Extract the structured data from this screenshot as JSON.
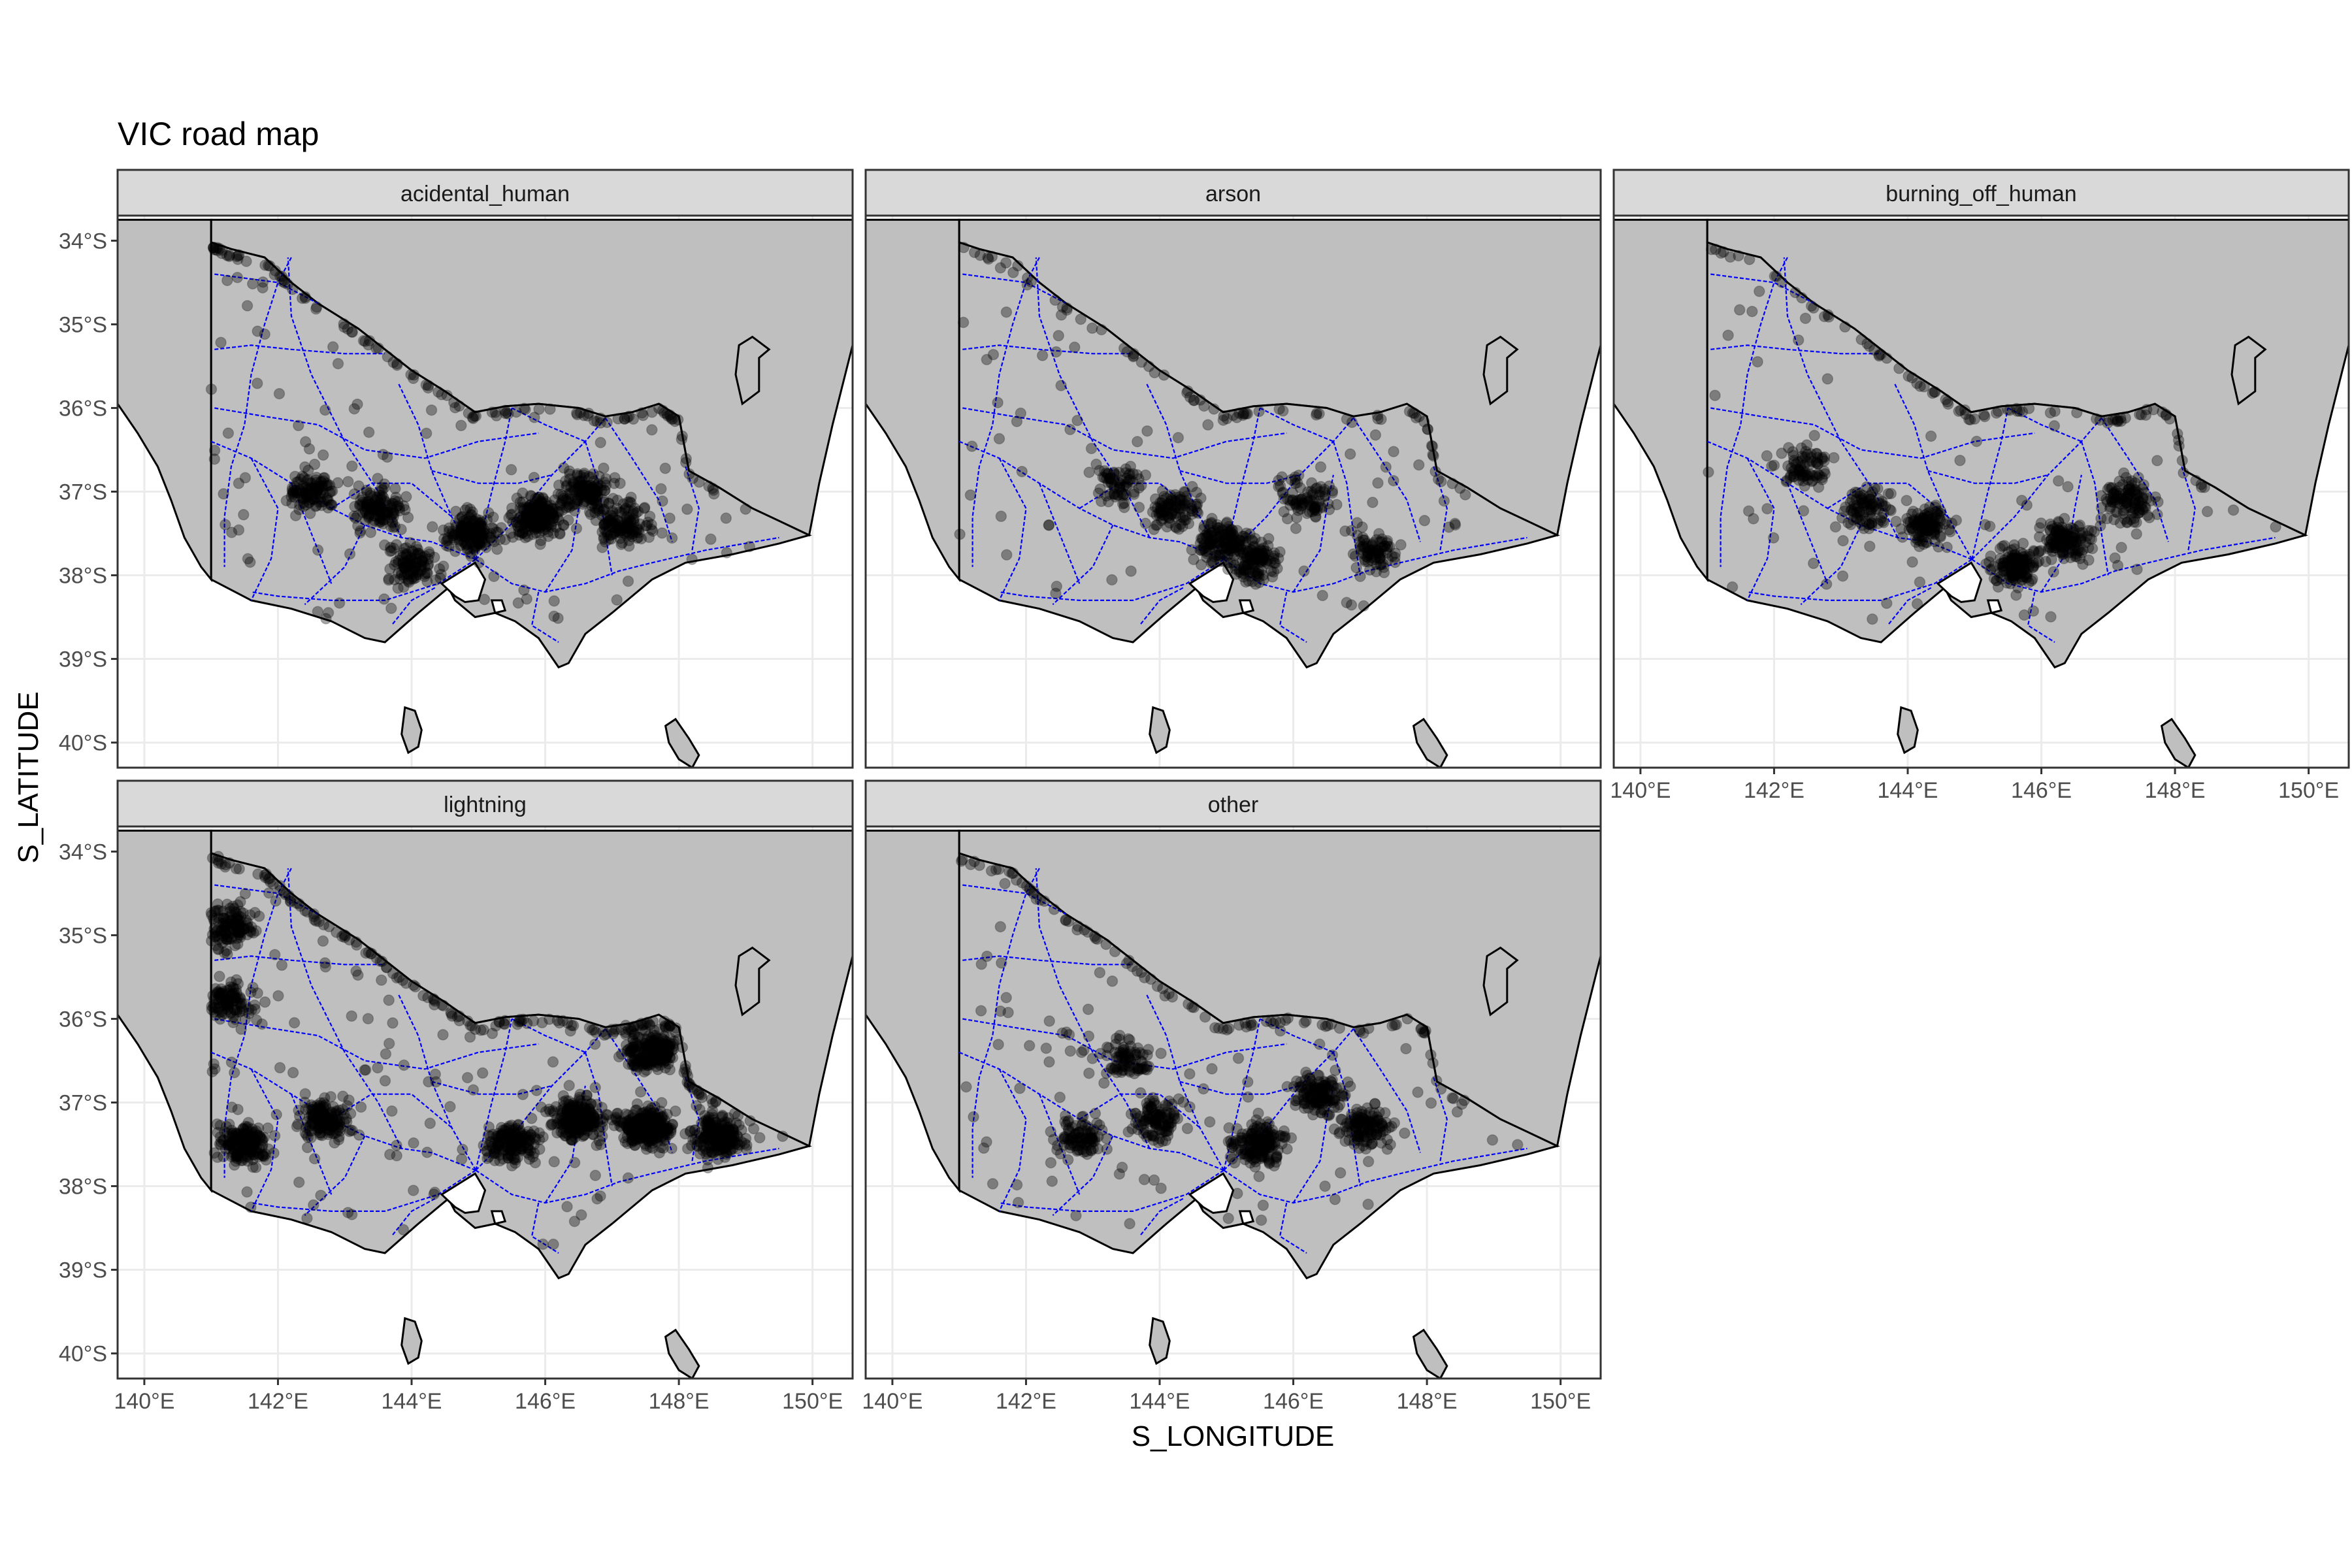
{
  "title": "VIC road map",
  "x_axis_label": "S_LONGITUDE",
  "y_axis_label": "S_LATITUDE",
  "colors": {
    "land": "#bfbfbf",
    "roads": "#0000ff",
    "points": "#000000",
    "strip": "#d9d9d9",
    "grid": "#ebebeb"
  },
  "chart_data": {
    "type": "scatter",
    "facet_variable": "cause",
    "facets": [
      {
        "label": "acidental_human",
        "row": 0,
        "col": 0,
        "density": 0.75,
        "hotspots": [
          [
            145.9,
            -37.3,
            1.0
          ],
          [
            144.9,
            -37.5,
            0.8
          ],
          [
            143.5,
            -37.2,
            0.5
          ],
          [
            146.6,
            -37.0,
            0.6
          ],
          [
            147.2,
            -37.4,
            0.5
          ],
          [
            142.5,
            -37.0,
            0.4
          ],
          [
            144.0,
            -37.9,
            0.4
          ]
        ]
      },
      {
        "label": "arson",
        "row": 0,
        "col": 1,
        "density": 0.45,
        "hotspots": [
          [
            144.9,
            -37.6,
            0.9
          ],
          [
            145.4,
            -37.8,
            0.9
          ],
          [
            144.2,
            -37.2,
            0.5
          ],
          [
            146.2,
            -37.1,
            0.4
          ],
          [
            147.2,
            -37.7,
            0.4
          ],
          [
            143.4,
            -36.9,
            0.3
          ]
        ]
      },
      {
        "label": "burning_off_human",
        "row": 0,
        "col": 2,
        "density": 0.55,
        "hotspots": [
          [
            144.3,
            -37.4,
            0.6
          ],
          [
            145.6,
            -37.9,
            0.8
          ],
          [
            146.4,
            -37.6,
            0.7
          ],
          [
            147.3,
            -37.1,
            0.6
          ],
          [
            143.4,
            -37.2,
            0.4
          ],
          [
            142.5,
            -36.7,
            0.3
          ]
        ]
      },
      {
        "label": "lightning",
        "row": 1,
        "col": 0,
        "density": 1.0,
        "hotspots": [
          [
            147.5,
            -37.3,
            1.0
          ],
          [
            146.5,
            -37.2,
            0.9
          ],
          [
            148.6,
            -37.4,
            0.8
          ],
          [
            147.6,
            -36.4,
            0.7
          ],
          [
            141.5,
            -37.5,
            0.6
          ],
          [
            141.3,
            -34.9,
            0.4
          ],
          [
            141.3,
            -35.8,
            0.3
          ],
          [
            142.7,
            -37.2,
            0.5
          ],
          [
            145.5,
            -37.5,
            0.5
          ]
        ]
      },
      {
        "label": "other",
        "row": 1,
        "col": 1,
        "density": 0.6,
        "hotspots": [
          [
            145.5,
            -37.5,
            0.9
          ],
          [
            146.4,
            -36.9,
            0.7
          ],
          [
            147.1,
            -37.3,
            0.6
          ],
          [
            144.0,
            -37.2,
            0.5
          ],
          [
            142.8,
            -37.4,
            0.4
          ],
          [
            143.5,
            -36.5,
            0.3
          ]
        ]
      }
    ],
    "xlim": [
      139.6,
      150.6
    ],
    "ylim": [
      -40.3,
      -33.7
    ],
    "x_ticks": [
      140,
      142,
      144,
      146,
      148,
      150
    ],
    "x_tick_labels": [
      "140°E",
      "142°E",
      "144°E",
      "146°E",
      "148°E",
      "150°E"
    ],
    "y_ticks": [
      -34,
      -35,
      -36,
      -37,
      -38,
      -39,
      -40
    ],
    "y_tick_labels": [
      "34°S",
      "35°S",
      "36°S",
      "37°S",
      "38°S",
      "39°S",
      "40°S"
    ],
    "grid": true,
    "point_alpha": 0.35
  }
}
